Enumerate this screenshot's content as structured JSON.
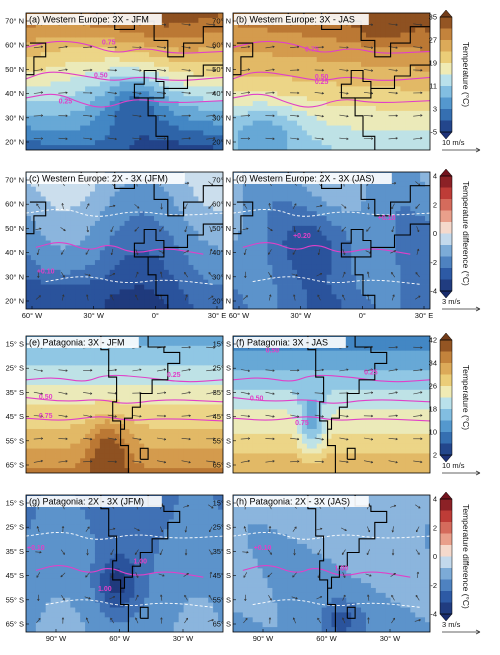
{
  "chart_data": {
    "type": "heatmap",
    "europe_x_ticks": [
      "60° W",
      "30° W",
      "0°",
      "30° E"
    ],
    "europe_y_ticks": [
      "70° N",
      "60° N",
      "50° N",
      "40° N",
      "30° N",
      "20° N"
    ],
    "patagonia_x_ticks": [
      "90° W",
      "60° W",
      "30° W"
    ],
    "patagonia_y_ticks": [
      "15° S",
      "25° S",
      "35° S",
      "45° S",
      "55° S",
      "65° S"
    ],
    "colorbars": [
      {
        "label": "Temperature (°C)",
        "ticks": [
          "35",
          "27",
          "19",
          "11",
          "3",
          "-5"
        ],
        "scale": "warm",
        "range": [
          -5,
          35
        ],
        "arrow": "10 m/s"
      },
      {
        "label": "Temperature difference (°C)",
        "ticks": [
          "4",
          "2",
          "0",
          "-2",
          "-4"
        ],
        "scale": "diverging",
        "range": [
          -5,
          5
        ],
        "arrow": "3 m/s"
      },
      {
        "label": "Temperature (°C)",
        "ticks": [
          "42",
          "34",
          "26",
          "18",
          "10",
          "2"
        ],
        "scale": "warm",
        "range": [
          2,
          42
        ],
        "arrow": "10 m/s"
      },
      {
        "label": "Temperature difference (°C)",
        "ticks": [
          "4",
          "2",
          "0",
          "-2",
          "-4"
        ],
        "scale": "diverging",
        "range": [
          -5,
          5
        ],
        "arrow": "3 m/s"
      }
    ],
    "panels": [
      {
        "id": "a",
        "title": "(a) Western Europe: 3X - JFM",
        "region": "europe",
        "kind": "abs",
        "season": "JFM",
        "contours": [
          "0.75",
          "0.50",
          "0.25"
        ]
      },
      {
        "id": "b",
        "title": "(b) Western Europe: 3X - JAS",
        "region": "europe",
        "kind": "abs",
        "season": "JAS",
        "contours": [
          "0.75",
          "0.50",
          "0.25"
        ]
      },
      {
        "id": "c",
        "title": "(c) Western Europe: 2X - 3X (JFM)",
        "region": "europe",
        "kind": "diff",
        "season": "JFM",
        "contours": [
          "+0.10"
        ]
      },
      {
        "id": "d",
        "title": "(d) Western Europe: 2X - 3X (JAS)",
        "region": "europe",
        "kind": "diff",
        "season": "JAS",
        "contours": [
          "+0.10",
          "+0.20"
        ]
      },
      {
        "id": "e",
        "title": "(e) Patagonia: 3X - JFM",
        "region": "patagonia",
        "kind": "abs",
        "season": "JFM",
        "contours": [
          "0.25",
          "0.50",
          "0.75"
        ]
      },
      {
        "id": "f",
        "title": "(f) Patagonia: 3X - JAS",
        "region": "patagonia",
        "kind": "abs",
        "season": "JAS",
        "contours": [
          "0.50",
          "0.25",
          "0.50",
          "0.75"
        ]
      },
      {
        "id": "g",
        "title": "(g) Patagonia: 2X - 3X (JFM)",
        "region": "patagonia",
        "kind": "diff",
        "season": "JFM",
        "contours": [
          "+0.10",
          "1.00",
          "1.00"
        ]
      },
      {
        "id": "h",
        "title": "(h) Patagonia: 2X - 3X (JAS)",
        "region": "patagonia",
        "kind": "diff",
        "season": "JAS",
        "contours": [
          "+0.10",
          "1.00"
        ]
      }
    ]
  }
}
